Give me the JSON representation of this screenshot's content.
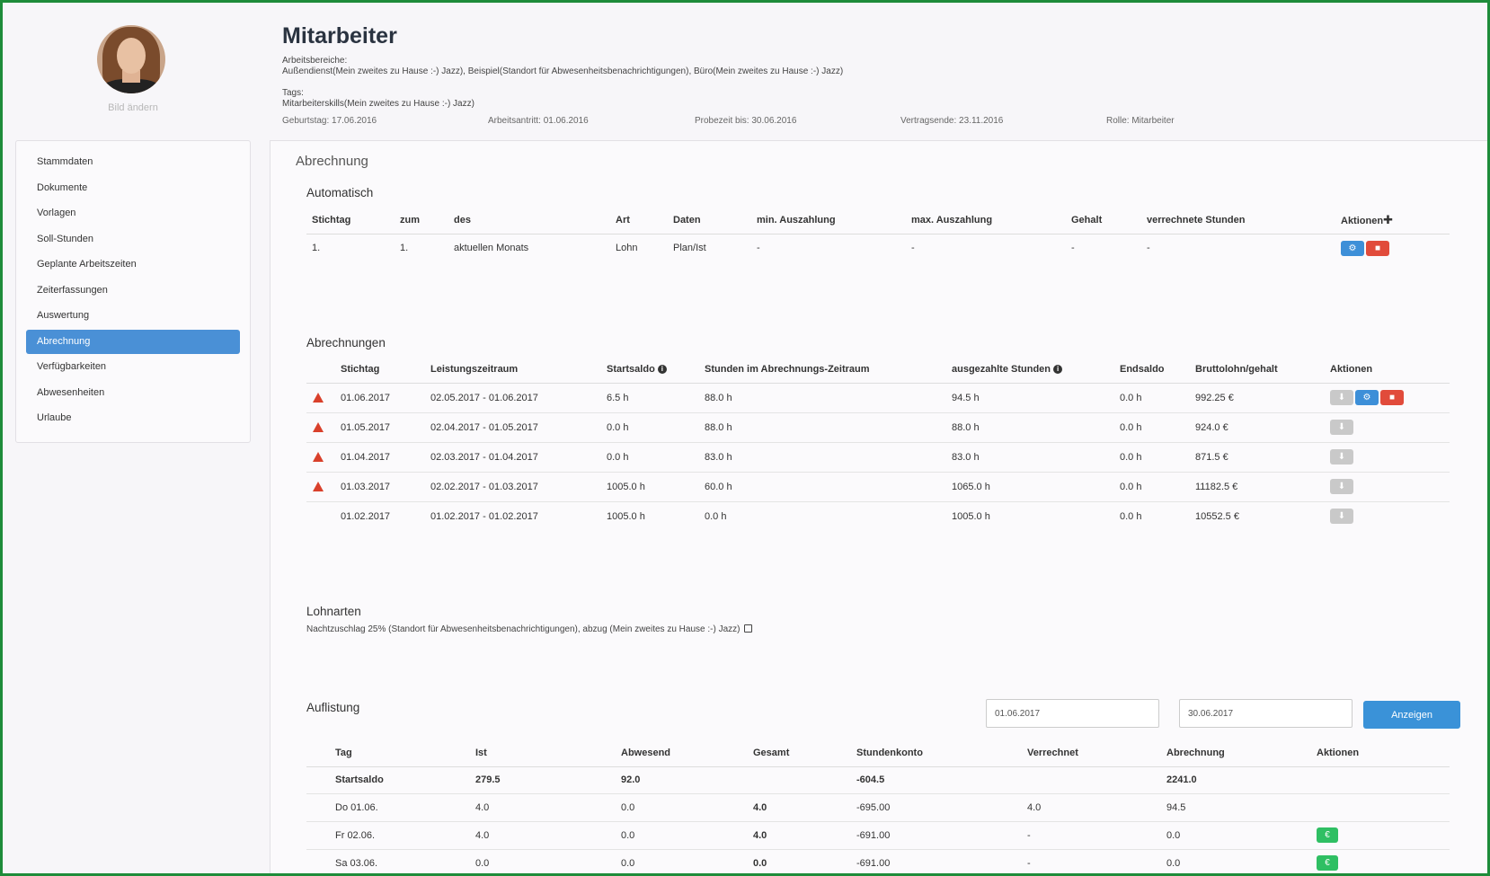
{
  "profile": {
    "change_photo": "Bild ändern",
    "name_title": "Mitarbeiter",
    "areas_label": "Arbeitsbereiche:",
    "areas_value": "Außendienst(Mein zweites zu Hause :-) Jazz), Beispiel(Standort für Abwesenheitsbenachrichtigungen), Büro(Mein zweites zu Hause :-) Jazz)",
    "tags_label": "Tags:",
    "tags_value": "Mitarbeiterskills(Mein zweites zu Hause :-) Jazz)",
    "birthday": "Geburtstag: 17.06.2016",
    "start": "Arbeitsantritt: 01.06.2016",
    "probation": "Probezeit bis: 30.06.2016",
    "contract_end": "Vertragsende: 23.11.2016",
    "role": "Rolle: Mitarbeiter"
  },
  "sidebar": {
    "items": [
      {
        "label": "Stammdaten",
        "active": false
      },
      {
        "label": "Dokumente",
        "active": false
      },
      {
        "label": "Vorlagen",
        "active": false
      },
      {
        "label": "Soll-Stunden",
        "active": false
      },
      {
        "label": "Geplante Arbeitszeiten",
        "active": false
      },
      {
        "label": "Zeiterfassungen",
        "active": false
      },
      {
        "label": "Auswertung",
        "active": false
      },
      {
        "label": "Abrechnung",
        "active": true
      },
      {
        "label": "Verfügbarkeiten",
        "active": false
      },
      {
        "label": "Abwesenheiten",
        "active": false
      },
      {
        "label": "Urlaube",
        "active": false
      }
    ]
  },
  "main": {
    "title": "Abrechnung",
    "automatisch": {
      "title": "Automatisch",
      "headers": [
        "Stichtag",
        "zum",
        "des",
        "Art",
        "Daten",
        "min. Auszahlung",
        "max. Auszahlung",
        "Gehalt",
        "verrechnete Stunden",
        "Aktionen"
      ],
      "add_icon": "plus-icon",
      "rows": [
        [
          "1.",
          "1.",
          "aktuellen Monats",
          "Lohn",
          "Plan/Ist",
          "-",
          "-",
          "-",
          "-"
        ]
      ]
    },
    "abrechnungen": {
      "title": "Abrechnungen",
      "headers": [
        "Stichtag",
        "Leistungszeitraum",
        "Startsaldo",
        "Stunden im Abrechnungs-Zeitraum",
        "ausgezahlte Stunden",
        "Endsaldo",
        "Bruttolohn/gehalt",
        "Aktionen"
      ],
      "rows": [
        {
          "warn": true,
          "cells": [
            "01.06.2017",
            "02.05.2017 - 01.06.2017",
            "6.5 h",
            "88.0 h",
            "94.5 h",
            "0.0 h",
            "992.25 €"
          ],
          "full_actions": true
        },
        {
          "warn": true,
          "cells": [
            "01.05.2017",
            "02.04.2017 - 01.05.2017",
            "0.0 h",
            "88.0 h",
            "88.0 h",
            "0.0 h",
            "924.0 €"
          ],
          "full_actions": false
        },
        {
          "warn": true,
          "cells": [
            "01.04.2017",
            "02.03.2017 - 01.04.2017",
            "0.0 h",
            "83.0 h",
            "83.0 h",
            "0.0 h",
            "871.5 €"
          ],
          "full_actions": false
        },
        {
          "warn": true,
          "cells": [
            "01.03.2017",
            "02.02.2017 - 01.03.2017",
            "1005.0 h",
            "60.0 h",
            "1065.0 h",
            "0.0 h",
            "11182.5 €"
          ],
          "full_actions": false
        },
        {
          "warn": false,
          "cells": [
            "01.02.2017",
            "01.02.2017 - 01.02.2017",
            "1005.0 h",
            "0.0 h",
            "1005.0 h",
            "0.0 h",
            "10552.5 €"
          ],
          "full_actions": false
        }
      ]
    },
    "lohnarten": {
      "title": "Lohnarten",
      "text": "Nachtzuschlag 25% (Standort für Abwesenheitsbenachrichtigungen), abzug (Mein zweites zu Hause :-) Jazz)"
    },
    "auflistung": {
      "title": "Auflistung",
      "date_from": "01.06.2017",
      "date_to": "30.06.2017",
      "show_button": "Anzeigen",
      "headers": [
        "Tag",
        "Ist",
        "Abwesend",
        "Gesamt",
        "Stundenkonto",
        "Verrechnet",
        "Abrechnung",
        "Aktionen"
      ],
      "rows": [
        {
          "cells": [
            "Startsaldo",
            "279.5",
            "92.0",
            "",
            "-604.5",
            "",
            "2241.0"
          ],
          "bold": true,
          "euro": false
        },
        {
          "cells": [
            "Do 01.06.",
            "4.0",
            "0.0",
            "4.0",
            "-695.00",
            "4.0",
            "94.5"
          ],
          "bold": false,
          "euro": false
        },
        {
          "cells": [
            "Fr 02.06.",
            "4.0",
            "0.0",
            "4.0",
            "-691.00",
            "-",
            "0.0"
          ],
          "bold": false,
          "euro": true
        },
        {
          "cells": [
            "Sa 03.06.",
            "0.0",
            "0.0",
            "0.0",
            "-691.00",
            "-",
            "0.0"
          ],
          "bold": false,
          "euro": true
        }
      ]
    }
  },
  "icons": {
    "gear": "gear-icon",
    "trash": "trash-icon",
    "download": "download-icon",
    "warning": "warning-icon",
    "info": "info-icon",
    "edit": "edit-icon",
    "euro": "euro-icon"
  },
  "colors": {
    "accent": "#4a90d6",
    "danger": "#e14b3b",
    "success": "#2fbf63",
    "warning": "#d9402b"
  }
}
